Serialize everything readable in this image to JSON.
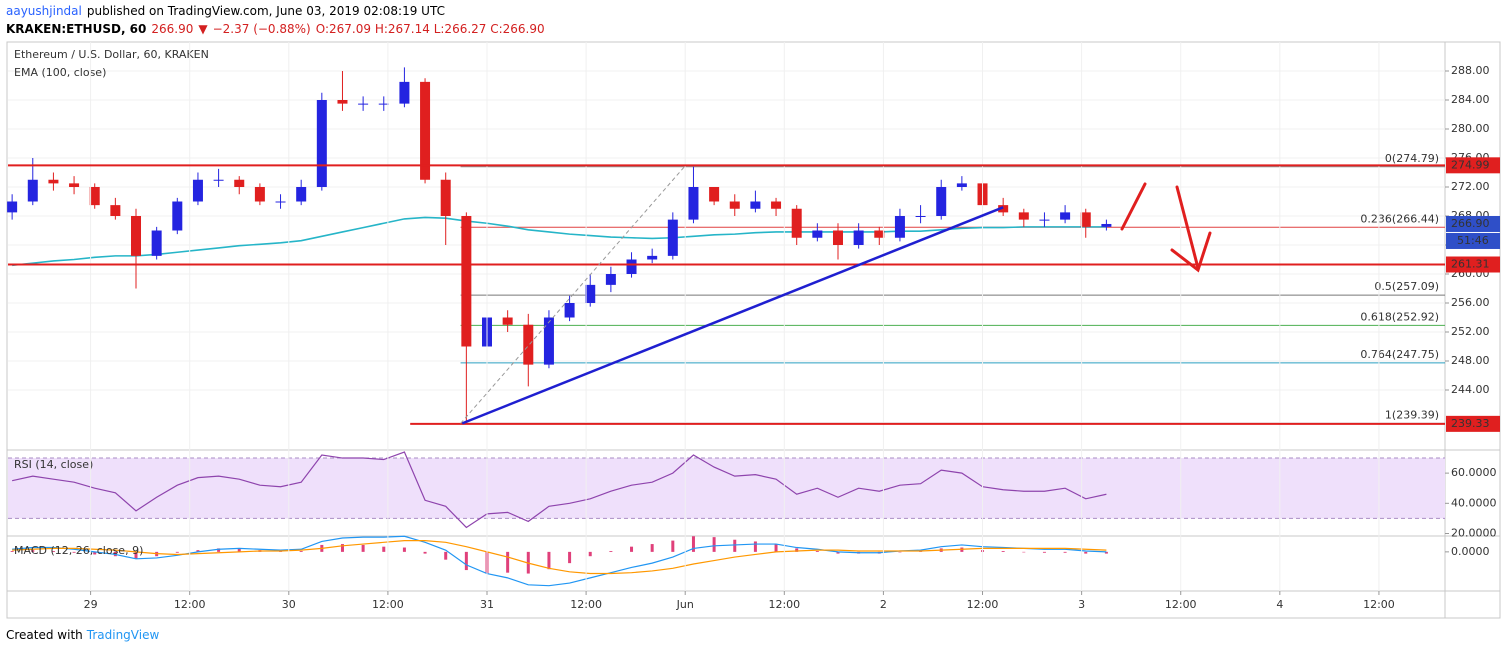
{
  "header": {
    "author": "aayushjindal",
    "published": "published on TradingView.com, June 03, 2019 02:08:19 UTC",
    "symbol": "KRAKEN:ETHUSD, 60",
    "price": "266.90",
    "arrow": "▼",
    "change": "−2.37 (−0.88%)",
    "ohlc": "O:267.09 H:267.14 L:266.27 C:266.90"
  },
  "footer": {
    "created": "Created with",
    "brand": "TradingView"
  },
  "chart_data": [
    {
      "type": "candlestick",
      "title": "Ethereum / U.S. Dollar, 60, KRAKEN",
      "x": [
        14.5,
        17,
        19.5,
        22,
        24.5,
        27,
        29.5,
        32,
        34.5,
        37,
        39.5,
        42,
        44.5,
        47,
        49.5,
        52,
        54.5,
        57,
        59.5,
        62,
        64.5,
        67,
        69.5,
        72,
        74.5,
        77,
        79.5,
        82,
        84.5,
        87,
        89.5,
        92,
        94.5,
        97,
        99.5,
        102,
        104.5,
        107,
        109.5,
        112,
        114.5,
        117,
        119.5,
        122,
        124.5,
        127,
        129.5,
        132,
        134.5,
        137,
        139.5,
        142,
        144.5,
        147
      ],
      "open": [
        268.5,
        270,
        273,
        272.5,
        272,
        269.5,
        268,
        262.5,
        266,
        270,
        273,
        273,
        272,
        270,
        270,
        272,
        284,
        283.5,
        283.5,
        283.5,
        286.5,
        273,
        268,
        250,
        254,
        253,
        247.5,
        254,
        256,
        258.5,
        260,
        262,
        262.5,
        267.5,
        272,
        270,
        269,
        270,
        269,
        265,
        266,
        264,
        266,
        265,
        268,
        268,
        272,
        272.5,
        269.5,
        268.5,
        267.5,
        267.5,
        268.5,
        266.5
      ],
      "high": [
        271,
        276,
        274,
        273.5,
        272.5,
        270.5,
        269,
        266.5,
        270.5,
        274,
        274.5,
        273.5,
        272.5,
        271,
        273,
        285,
        288,
        284.5,
        284.5,
        288.5,
        287,
        274,
        268.5,
        255,
        255,
        254.5,
        255,
        257,
        260,
        261,
        263,
        263.5,
        268.5,
        274.8,
        272,
        271,
        271.5,
        270.5,
        269.5,
        267,
        267,
        267,
        266.5,
        269,
        269.5,
        273,
        273.5,
        273,
        270.5,
        269,
        268.5,
        269.5,
        269,
        267.5
      ],
      "low": [
        267.5,
        269.5,
        271.5,
        271,
        269,
        267.5,
        258,
        262,
        265.5,
        269.5,
        272,
        271,
        269.5,
        269,
        269.5,
        271.5,
        282.5,
        282.5,
        282.5,
        283,
        272.5,
        264,
        239.4,
        248.5,
        252,
        244.5,
        247,
        253.5,
        255.5,
        257.5,
        259.5,
        261.5,
        262,
        267,
        269.5,
        268,
        268.5,
        268,
        264,
        264.5,
        262,
        263.5,
        264,
        264.5,
        267,
        267.5,
        271.5,
        269,
        268,
        266.5,
        266.5,
        267,
        265,
        266
      ],
      "close": [
        270,
        273,
        272.5,
        272,
        269.5,
        268,
        262.5,
        266,
        270,
        273,
        273,
        272,
        270,
        270,
        272,
        284,
        283.5,
        283.5,
        283.5,
        286.5,
        273,
        268,
        250,
        254,
        253,
        247.5,
        254,
        256,
        258.5,
        260,
        262,
        262.5,
        267.5,
        272,
        270,
        269,
        270,
        269,
        265,
        266,
        264,
        266,
        265,
        268,
        268,
        272,
        272.5,
        269.5,
        268.5,
        267.5,
        267.5,
        268.5,
        266.5,
        266.9
      ],
      "up_color": "#2424e0",
      "down_color": "#e01f1f",
      "series": [
        {
          "name": "EMA (100, close)",
          "color": "#26b5c8",
          "values": [
            261.2,
            261.5,
            261.8,
            262,
            262.3,
            262.5,
            262.5,
            262.7,
            263,
            263.3,
            263.6,
            263.9,
            264.1,
            264.3,
            264.6,
            265.2,
            265.8,
            266.4,
            267,
            267.6,
            267.8,
            267.7,
            267.3,
            267,
            266.6,
            266.1,
            265.8,
            265.5,
            265.3,
            265.1,
            265,
            264.9,
            265,
            265.2,
            265.4,
            265.5,
            265.7,
            265.8,
            265.8,
            265.8,
            265.8,
            265.8,
            265.8,
            265.9,
            265.9,
            266.1,
            266.3,
            266.4,
            266.4,
            266.5,
            266.5,
            266.5,
            266.5,
            266.5
          ]
        }
      ],
      "xlim": [
        14,
        188
      ],
      "ylim": [
        236,
        292
      ],
      "grid": true,
      "yticks": [
        {
          "value": 244,
          "label": "244.00"
        },
        {
          "value": 248,
          "label": "248.00"
        },
        {
          "value": 252,
          "label": "252.00"
        },
        {
          "value": 256,
          "label": "256.00"
        },
        {
          "value": 260,
          "label": "260.00"
        },
        {
          "value": 264,
          "label": "264.00"
        },
        {
          "value": 268,
          "label": "268.00"
        },
        {
          "value": 272,
          "label": "272.00"
        },
        {
          "value": 276,
          "label": "276.00"
        },
        {
          "value": 280,
          "label": "280.00"
        },
        {
          "value": 284,
          "label": "284.00"
        },
        {
          "value": 288,
          "label": "288.00"
        }
      ],
      "levels": [
        {
          "value": 274.99,
          "label": "274.99",
          "color": "#e01f1f"
        },
        {
          "value": 261.31,
          "label": "261.31",
          "color": "#e01f1f"
        },
        {
          "value": 239.33,
          "label": "239.33",
          "color": "#e01f1f",
          "start": 62.7
        }
      ],
      "fib": {
        "start": 68.8,
        "levels": [
          {
            "ratio": 0,
            "price": 274.79,
            "label": "0(274.79)",
            "color": "#888888"
          },
          {
            "ratio": 0.236,
            "price": 266.44,
            "label": "0.236(266.44)",
            "color": "#e04040"
          },
          {
            "ratio": 0.5,
            "price": 257.09,
            "label": "0.5(257.09)",
            "color": "#777777"
          },
          {
            "ratio": 0.618,
            "price": 252.92,
            "label": "0.618(252.92)",
            "color": "#4caf50"
          },
          {
            "ratio": 0.764,
            "price": 247.75,
            "label": "0.764(247.75)",
            "color": "#2a9fc0"
          },
          {
            "ratio": 1,
            "price": 239.39,
            "label": "1(239.39)",
            "color": "#6a8fb0"
          }
        ]
      },
      "trendlines": [
        {
          "x": [
            69,
            134.5
          ],
          "y": [
            239.4,
            269.2
          ],
          "color": "#1f1fd0",
          "style": "solid"
        },
        {
          "x": [
            68.8,
            95.9
          ],
          "y": [
            239.39,
            274.79
          ],
          "color": "#999999",
          "style": "dashed"
        }
      ],
      "last_price": {
        "value": 266.9,
        "label": "266.90",
        "color": "#2f4fc8"
      },
      "countdown": "51:46"
    },
    {
      "type": "line",
      "title": "RSI (14, close)",
      "x": [
        14.5,
        17,
        19.5,
        22,
        24.5,
        27,
        29.5,
        32,
        34.5,
        37,
        39.5,
        42,
        44.5,
        47,
        49.5,
        52,
        54.5,
        57,
        59.5,
        62,
        64.5,
        67,
        69.5,
        72,
        74.5,
        77,
        79.5,
        82,
        84.5,
        87,
        89.5,
        92,
        94.5,
        97,
        99.5,
        102,
        104.5,
        107,
        109.5,
        112,
        114.5,
        117,
        119.5,
        122,
        124.5,
        127,
        129.5,
        132,
        134.5,
        137,
        139.5,
        142,
        144.5,
        147
      ],
      "series": [
        {
          "color": "#8e44ad",
          "values": [
            55,
            58,
            56,
            54,
            50,
            47,
            35,
            44,
            52,
            57,
            58,
            56,
            52,
            51,
            54,
            72,
            70,
            70,
            69,
            74,
            42,
            38,
            24,
            33,
            34,
            28,
            38,
            40,
            43,
            48,
            52,
            54,
            60,
            72,
            64,
            58,
            59,
            56,
            46,
            50,
            44,
            50,
            48,
            52,
            53,
            62,
            60,
            51,
            49,
            48,
            48,
            50,
            43,
            46
          ]
        }
      ],
      "bands": [
        30,
        70
      ],
      "band_color": "#efe0fb",
      "xlim": [
        14,
        188
      ],
      "ylim": [
        19,
        74
      ],
      "yticks": [
        {
          "value": 20,
          "label": "20.0000"
        },
        {
          "value": 40,
          "label": "40.0000"
        },
        {
          "value": 60,
          "label": "60.0000"
        }
      ]
    },
    {
      "type": "combo",
      "title": "MACD (12, 26, close, 9)",
      "x": [
        14.5,
        17,
        19.5,
        22,
        24.5,
        27,
        29.5,
        32,
        34.5,
        37,
        39.5,
        42,
        44.5,
        47,
        49.5,
        52,
        54.5,
        57,
        59.5,
        62,
        64.5,
        67,
        69.5,
        72,
        74.5,
        77,
        79.5,
        82,
        84.5,
        87,
        89.5,
        92,
        94.5,
        97,
        99.5,
        102,
        104.5,
        107,
        109.5,
        112,
        114.5,
        117,
        119.5,
        122,
        124.5,
        127,
        129.5,
        132,
        134.5,
        137,
        139.5,
        142,
        144.5,
        147
      ],
      "histogram": {
        "color": "#e0407a",
        "values": [
          0.1,
          0.2,
          0.1,
          -0.1,
          -0.3,
          -0.5,
          -0.8,
          -0.5,
          -0.1,
          0.2,
          0.4,
          0.4,
          0.2,
          0.1,
          0.1,
          0.8,
          0.9,
          0.8,
          0.6,
          0.5,
          -0.2,
          -0.9,
          -2.1,
          -2.5,
          -2.4,
          -2.5,
          -2,
          -1.3,
          -0.5,
          0.1,
          0.6,
          0.9,
          1.3,
          1.8,
          1.7,
          1.4,
          1.2,
          0.9,
          0.4,
          0.1,
          -0.2,
          -0.2,
          -0.2,
          0,
          0.1,
          0.4,
          0.5,
          0.2,
          0.1,
          0,
          -0.1,
          -0.1,
          -0.2,
          -0.2
        ]
      },
      "series": [
        {
          "color": "#2196f3",
          "values": [
            0.3,
            0.5,
            0.5,
            0.3,
            0,
            -0.3,
            -0.8,
            -0.7,
            -0.4,
            0,
            0.3,
            0.4,
            0.3,
            0.2,
            0.3,
            1.2,
            1.6,
            1.7,
            1.7,
            1.8,
            1.1,
            0.2,
            -1.5,
            -2.5,
            -3,
            -3.8,
            -3.9,
            -3.6,
            -3,
            -2.4,
            -1.8,
            -1.3,
            -0.6,
            0.4,
            0.7,
            0.8,
            0.9,
            0.9,
            0.5,
            0.3,
            0,
            -0.1,
            -0.1,
            0.1,
            0.2,
            0.6,
            0.8,
            0.6,
            0.5,
            0.4,
            0.3,
            0.3,
            0.1,
            0
          ]
        },
        {
          "color": "#ff9800",
          "values": [
            0.2,
            0.3,
            0.4,
            0.4,
            0.3,
            0.2,
            0,
            -0.2,
            -0.3,
            -0.2,
            -0.1,
            0,
            0.1,
            0.1,
            0.2,
            0.4,
            0.7,
            0.9,
            1.1,
            1.3,
            1.3,
            1.1,
            0.6,
            0,
            -0.6,
            -1.3,
            -1.9,
            -2.3,
            -2.5,
            -2.5,
            -2.4,
            -2.2,
            -1.9,
            -1.4,
            -1,
            -0.6,
            -0.3,
            0,
            0.1,
            0.2,
            0.2,
            0.1,
            0.1,
            0.1,
            0.1,
            0.2,
            0.3,
            0.4,
            0.4,
            0.4,
            0.4,
            0.4,
            0.3,
            0.2
          ]
        }
      ],
      "xlim": [
        14,
        188
      ],
      "ylim": [
        -4.4,
        1.6
      ],
      "yticks": [
        {
          "value": 0,
          "label": "0.0000"
        }
      ],
      "xticks": [
        {
          "value": 24,
          "label": "29"
        },
        {
          "value": 36,
          "label": "12:00"
        },
        {
          "value": 48,
          "label": "30"
        },
        {
          "value": 60,
          "label": "12:00"
        },
        {
          "value": 72,
          "label": "31"
        },
        {
          "value": 84,
          "label": "12:00"
        },
        {
          "value": 96,
          "label": "Jun"
        },
        {
          "value": 108,
          "label": "12:00"
        },
        {
          "value": 120,
          "label": "2"
        },
        {
          "value": 132,
          "label": "12:00"
        },
        {
          "value": 144,
          "label": "3"
        },
        {
          "value": 156,
          "label": "12:00"
        },
        {
          "value": 168,
          "label": "4"
        },
        {
          "value": 180,
          "label": "12:00"
        }
      ]
    }
  ]
}
